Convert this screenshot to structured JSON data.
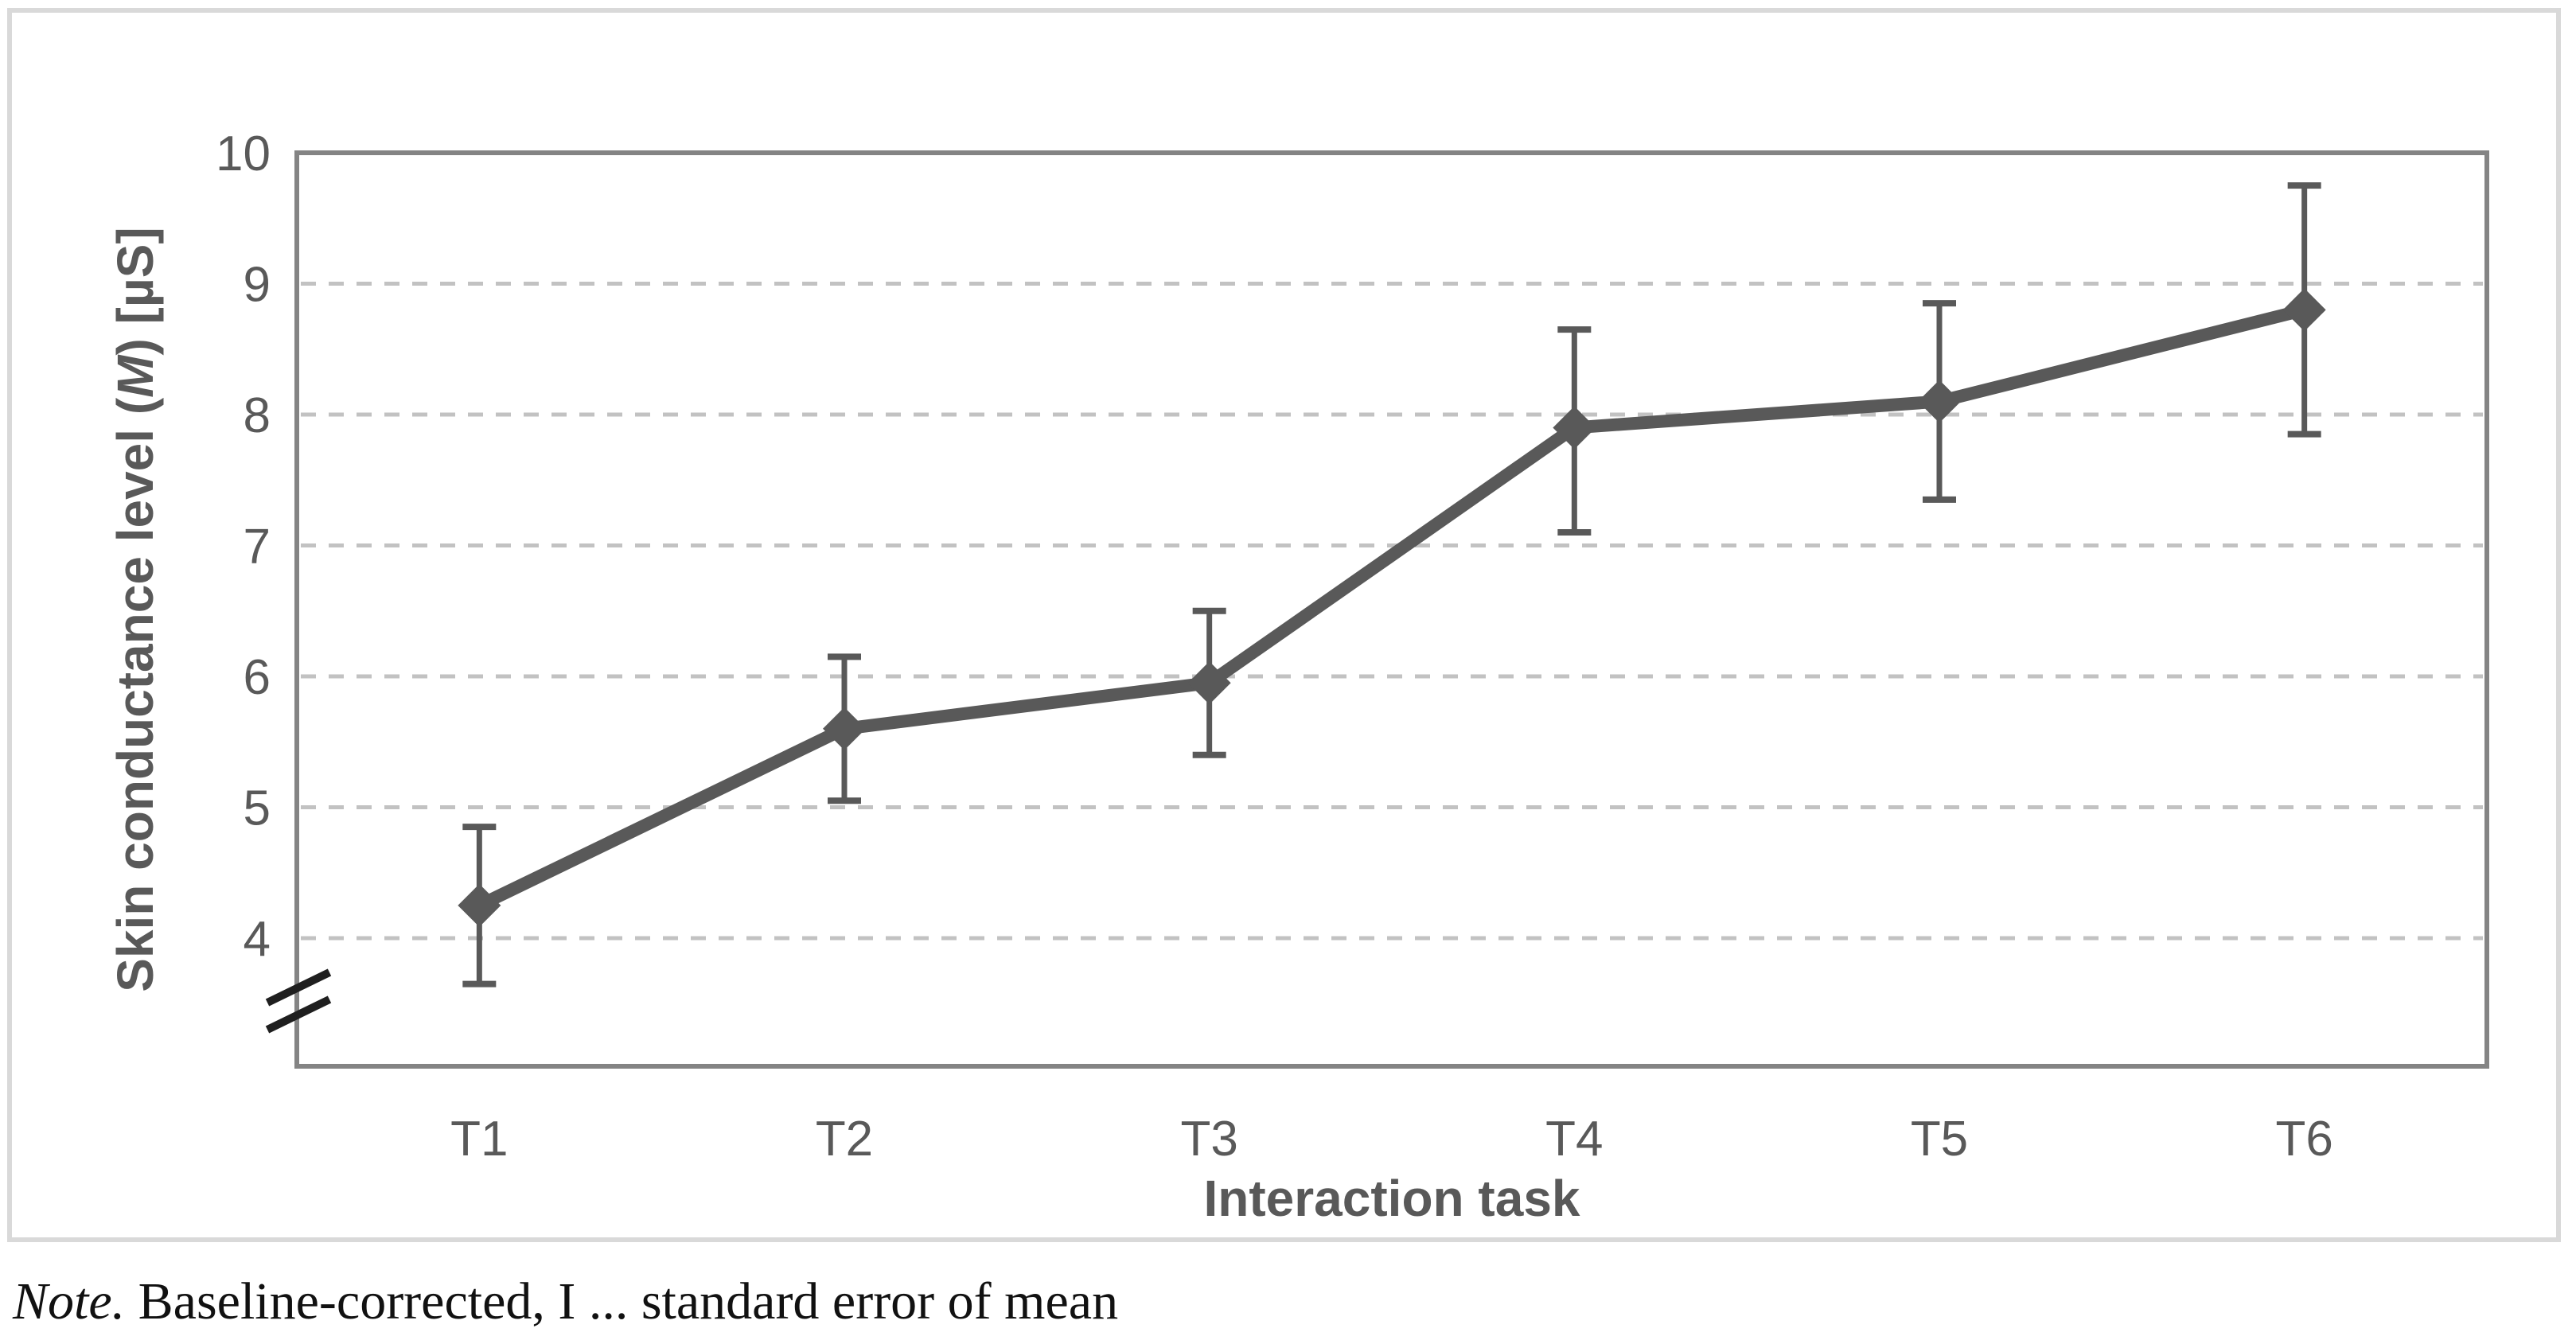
{
  "figure": {
    "note": {
      "prefix": "Note.",
      "text": " Baseline-corrected, I ... standard error of mean"
    }
  },
  "chart_data": {
    "type": "line",
    "title": "",
    "categories": [
      "T1",
      "T2",
      "T3",
      "T4",
      "T5",
      "T6"
    ],
    "series": [
      {
        "name": "Skin conductance level (M)",
        "values": [
          4.25,
          5.6,
          5.95,
          7.9,
          8.1,
          8.8
        ],
        "error_upper": [
          4.85,
          6.15,
          6.5,
          8.65,
          8.85,
          9.75
        ],
        "error_lower": [
          3.65,
          5.05,
          5.4,
          7.1,
          7.35,
          7.85
        ]
      }
    ],
    "xlabel": "Interaction task",
    "ylabel": "Skin conductance level (M) [µS]",
    "ylabel_parts": {
      "pre": "Skin conductance level (",
      "italic": "M",
      "post": ") [µS]"
    },
    "y_ticks": [
      10,
      9,
      8,
      7,
      6,
      5,
      4
    ],
    "y_gridlines": [
      9,
      8,
      7,
      6,
      5,
      4
    ],
    "ylim": [
      4,
      10
    ],
    "axis_break": true,
    "grid": "horizontal-dashed",
    "legend": "none",
    "marker": "diamond",
    "error_bars": "standard error of mean",
    "colors": {
      "series": "#595959",
      "text": "#595959",
      "gridline": "#c2c2c2",
      "axis": "#848484",
      "figure_border": "#d9d9d9",
      "axis_break": "#1f1f1f",
      "note_text": "#111111"
    }
  }
}
